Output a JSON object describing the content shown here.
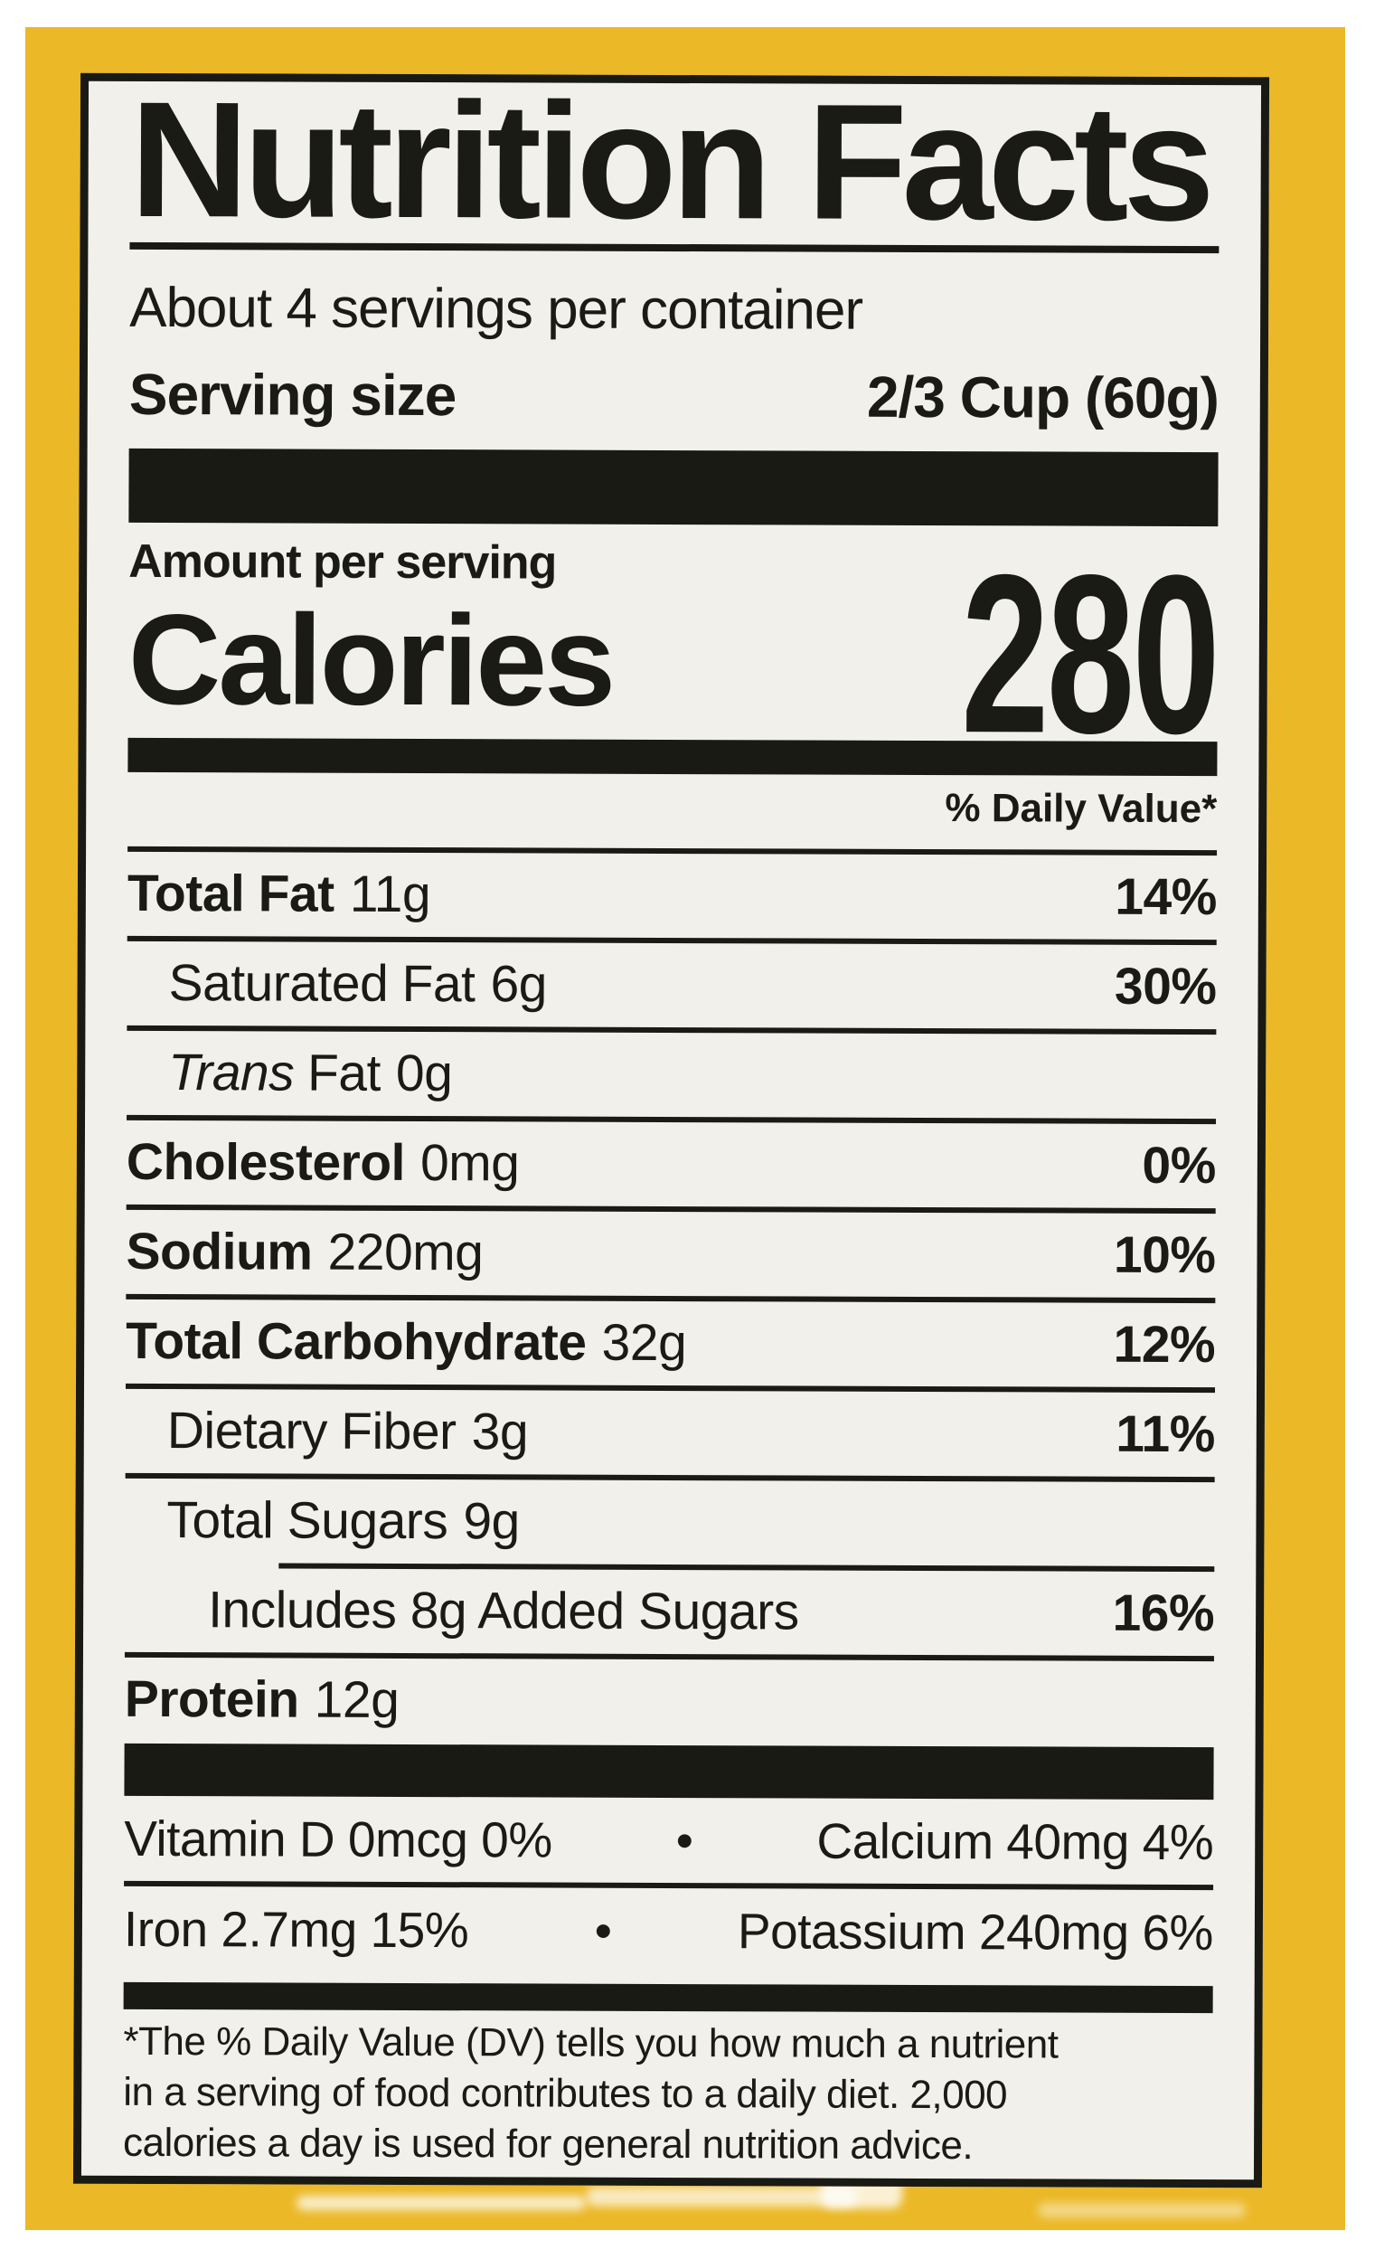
{
  "colors": {
    "package_yellow": "#ebb827",
    "label_background": "#f2f0eb",
    "ink_black": "#1b1b15"
  },
  "label": {
    "title": "Nutrition Facts",
    "servings_per_container": "About 4 servings per container",
    "serving_size_label": "Serving size",
    "serving_size_value": "2/3 Cup (60g)",
    "amount_per_serving": "Amount per serving",
    "calories_label": "Calories",
    "calories_value": "280",
    "daily_value_header": "% Daily Value*",
    "nutrients": [
      {
        "name": "Total Fat",
        "amount": "11g",
        "dv": "14%"
      },
      {
        "name": "Saturated Fat",
        "amount": "6g",
        "dv": "30%"
      },
      {
        "name_italic": "Trans",
        "name": "Fat",
        "amount": "0g",
        "dv": ""
      },
      {
        "name": "Cholesterol",
        "amount": "0mg",
        "dv": "0%"
      },
      {
        "name": "Sodium",
        "amount": "220mg",
        "dv": "10%"
      },
      {
        "name": "Total Carbohydrate",
        "amount": "32g",
        "dv": "12%"
      },
      {
        "name": "Dietary Fiber",
        "amount": "3g",
        "dv": "11%"
      },
      {
        "name": "Total Sugars",
        "amount": "9g",
        "dv": ""
      },
      {
        "name": "Includes 8g Added Sugars",
        "amount": "",
        "dv": "16%"
      },
      {
        "name": "Protein",
        "amount": "12g",
        "dv": ""
      }
    ],
    "vitamins": [
      {
        "left": "Vitamin D 0mcg 0%",
        "separator": "•",
        "right": "Calcium 40mg 4%"
      },
      {
        "left": "Iron 2.7mg 15%",
        "separator": "•",
        "right": "Potassium 240mg 6%"
      }
    ],
    "footnote_lines": [
      "*The % Daily Value (DV) tells you how much a nutrient",
      "in a serving of food contributes to a daily diet. 2,000",
      "calories a day is used for general nutrition advice."
    ]
  }
}
